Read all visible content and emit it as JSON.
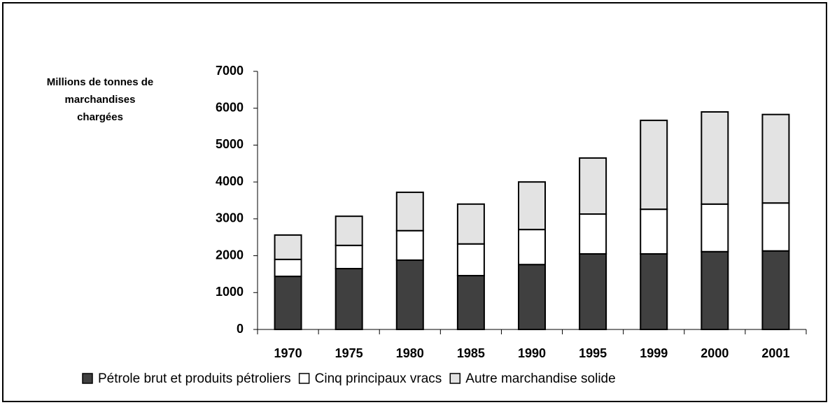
{
  "chart_data": {
    "type": "stacked-bar",
    "ylabel": [
      "Millions de tonnes de",
      "marchandises",
      "chargées"
    ],
    "categories": [
      "1970",
      "1975",
      "1980",
      "1985",
      "1990",
      "1995",
      "1999",
      "2000",
      "2001"
    ],
    "series": [
      {
        "name": "Pétrole brut et produits pétroliers",
        "color": "#404040",
        "values": [
          1440,
          1650,
          1880,
          1460,
          1760,
          2050,
          2050,
          2110,
          2130
        ]
      },
      {
        "name": "Cinq principaux vracs",
        "color": "#ffffff",
        "values": [
          460,
          630,
          800,
          860,
          950,
          1080,
          1210,
          1290,
          1300
        ]
      },
      {
        "name": "Autre marchandise solide",
        "color": "#e3e3e3",
        "values": [
          660,
          790,
          1040,
          1080,
          1290,
          1520,
          2410,
          2500,
          2400
        ]
      }
    ],
    "ylim": [
      0,
      7000
    ],
    "yticks": [
      0,
      1000,
      2000,
      3000,
      4000,
      5000,
      6000,
      7000
    ],
    "legend": "bottom"
  }
}
